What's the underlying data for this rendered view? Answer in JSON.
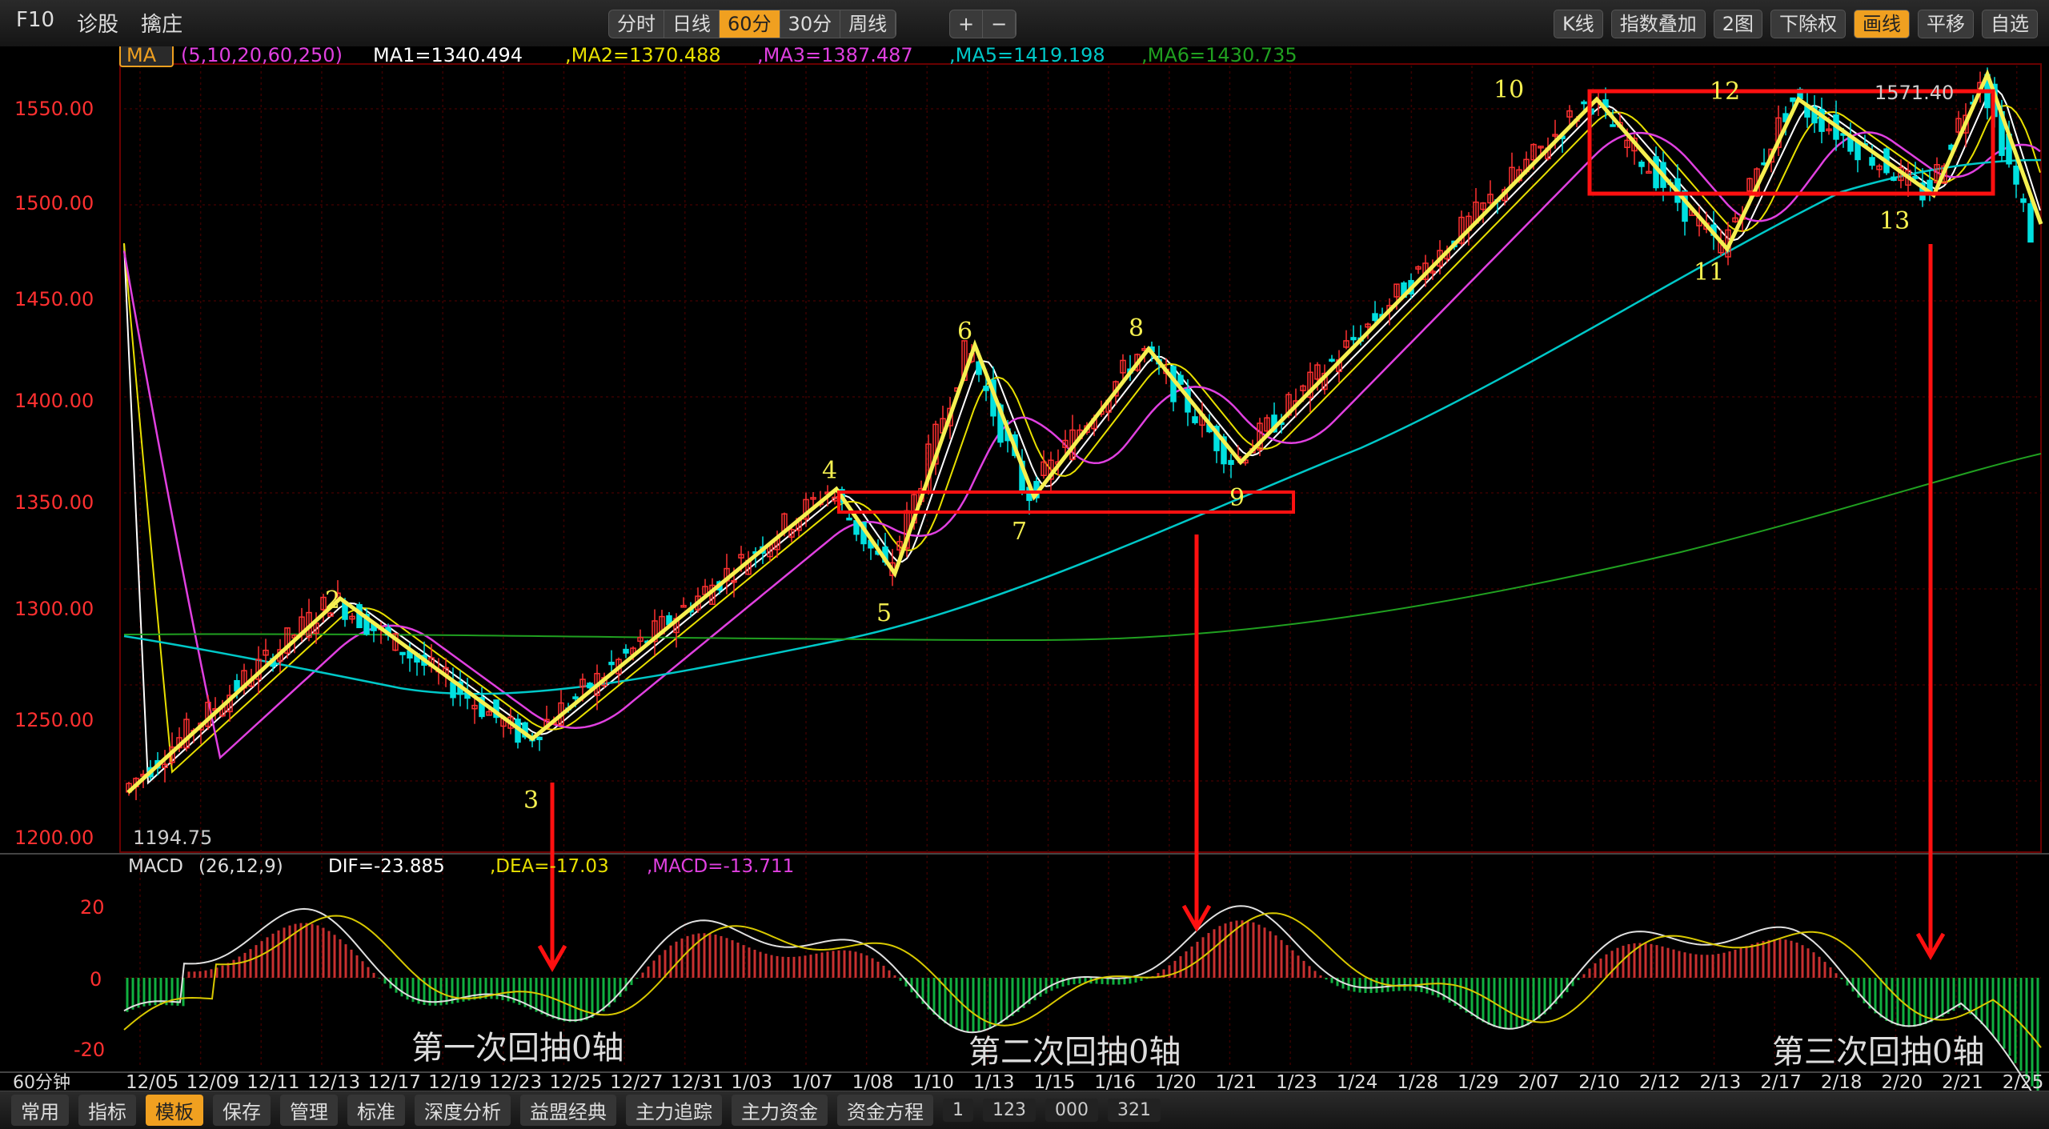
{
  "toolbar": {
    "left_items": [
      "F10",
      "诊股",
      "擒庄"
    ],
    "period_tabs": [
      "分时",
      "日线",
      "60分",
      "30分",
      "周线"
    ],
    "active_period": "60分",
    "zoom_buttons": [
      "+",
      "−"
    ],
    "right_items": [
      "K线",
      "指数叠加",
      "2图",
      "下除权",
      "画线",
      "平移",
      "自选"
    ],
    "active_right": "画线"
  },
  "ma_legend": {
    "label": "MA",
    "params": "(5,10,20,60,250)",
    "ma1": "MA1=1340.494",
    "ma2": ",MA2=1370.488",
    "ma3": ",MA3=1387.487",
    "ma5": ",MA5=1419.198",
    "ma6": ",MA6=1430.735"
  },
  "price_axis": [
    "1550.00",
    "1500.00",
    "1450.00",
    "1400.00",
    "1350.00",
    "1300.00",
    "1250.00",
    "1200.00"
  ],
  "low_label": "1194.75",
  "high_label": "1571.40",
  "wave_labels": [
    "2",
    "3",
    "4",
    "5",
    "6",
    "7",
    "8",
    "9",
    "10",
    "11",
    "12",
    "13"
  ],
  "macd_legend": {
    "label": "MACD",
    "params": "(26,12,9)",
    "dif": "DIF=-23.885",
    "dea": ",DEA=-17.03",
    "macd": ",MACD=-13.711"
  },
  "macd_axis": [
    "20",
    "0",
    "-20"
  ],
  "annotations": [
    "第一次回抽0轴",
    "第二次回抽0轴",
    "第三次回抽0轴"
  ],
  "period_label": "60分钟",
  "date_axis": [
    "12/05",
    "12/09",
    "12/11",
    "12/13",
    "12/17",
    "12/19",
    "12/23",
    "12/25",
    "12/27",
    "12/31",
    "1/03",
    "1/07",
    "1/08",
    "1/10",
    "1/13",
    "1/15",
    "1/16",
    "1/20",
    "1/21",
    "1/23",
    "1/24",
    "1/28",
    "1/29",
    "2/07",
    "2/10",
    "2/12",
    "2/13",
    "2/17",
    "2/18",
    "2/20",
    "2/21",
    "2/25"
  ],
  "bottom_tabs": [
    "常用",
    "指标",
    "模板",
    "保存",
    "管理",
    "标准",
    "深度分析",
    "益盟经典",
    "主力追踪",
    "主力资金",
    "资金方程"
  ],
  "active_bottom": "模板",
  "bottom_numbers": [
    "1",
    "123",
    "000",
    "321"
  ],
  "colors": {
    "up": "#ff3030",
    "down": "#00e0e0",
    "ma1": "#ffffff",
    "ma2": "#e8e000",
    "ma3": "#e040e0",
    "ma5": "#00c8c8",
    "ma6": "#20a020",
    "wave": "#f5f050",
    "box": "#ff1010"
  }
}
